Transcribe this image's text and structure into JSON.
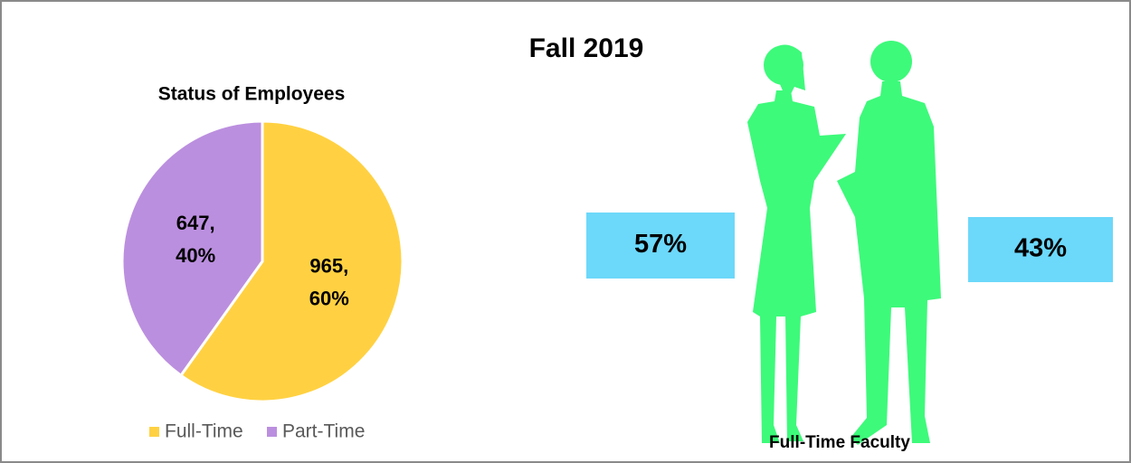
{
  "title": "Fall 2019",
  "chart_data": [
    {
      "type": "pie",
      "title": "Status of Employees",
      "categories": [
        "Full-Time",
        "Part-Time"
      ],
      "values": [
        965,
        647
      ],
      "value_labels": [
        [
          "965,",
          "60%"
        ],
        [
          "647,",
          "40%"
        ]
      ],
      "colors": [
        "#ffd142",
        "#bb8fdf"
      ],
      "legend": "bottom"
    },
    {
      "type": "pictograph",
      "title": "Full-Time Faculty",
      "categories": [
        null,
        null
      ],
      "values": [
        57,
        43
      ],
      "value_labels": [
        "57%",
        "43%"
      ],
      "color": "#6cd8fa",
      "figure_color": "#3dfa7a"
    }
  ]
}
